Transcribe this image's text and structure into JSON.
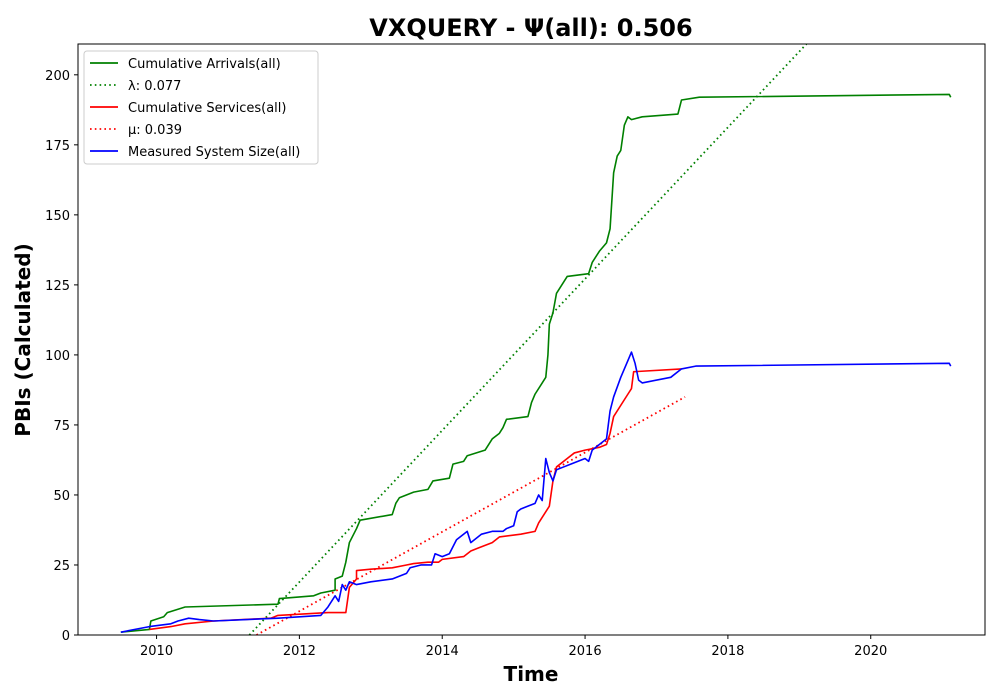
{
  "chart_data": {
    "type": "line",
    "title": "VXQUERY -  Ψ(all): 0.506",
    "xlabel": "Time",
    "ylabel": "PBIs (Calculated)",
    "xlim": [
      2008.9,
      2021.6
    ],
    "ylim": [
      0,
      211
    ],
    "xticks": [
      2010,
      2012,
      2014,
      2016,
      2018,
      2020
    ],
    "yticks": [
      0,
      25,
      50,
      75,
      100,
      125,
      150,
      175,
      200
    ],
    "grid": false,
    "legend_position": "top-left",
    "legend": [
      "Cumulative Arrivals(all)",
      "λ: 0.077",
      "Cumulative Services(all)",
      "μ: 0.039",
      "Measured System Size(all)"
    ],
    "colors": {
      "arrivals": "#008000",
      "services": "#ff0000",
      "system_size": "#0000ff"
    },
    "series": [
      {
        "name": "Cumulative Arrivals(all)",
        "style": "solid",
        "color": "#008000",
        "points": [
          [
            2009.5,
            1
          ],
          [
            2009.9,
            2
          ],
          [
            2009.92,
            5
          ],
          [
            2010.1,
            6.5
          ],
          [
            2010.15,
            8
          ],
          [
            2010.4,
            10
          ],
          [
            2011.7,
            11
          ],
          [
            2011.72,
            13
          ],
          [
            2012.2,
            14
          ],
          [
            2012.3,
            15
          ],
          [
            2012.5,
            16
          ],
          [
            2012.5,
            20
          ],
          [
            2012.6,
            21
          ],
          [
            2012.65,
            26
          ],
          [
            2012.7,
            33
          ],
          [
            2012.8,
            38
          ],
          [
            2012.85,
            41
          ],
          [
            2013.3,
            43
          ],
          [
            2013.35,
            47
          ],
          [
            2013.4,
            49
          ],
          [
            2013.6,
            51
          ],
          [
            2013.8,
            52
          ],
          [
            2013.87,
            55
          ],
          [
            2014.1,
            56
          ],
          [
            2014.15,
            61
          ],
          [
            2014.3,
            62
          ],
          [
            2014.35,
            64
          ],
          [
            2014.6,
            66
          ],
          [
            2014.7,
            70
          ],
          [
            2014.8,
            72
          ],
          [
            2014.85,
            74
          ],
          [
            2014.9,
            77
          ],
          [
            2015.2,
            78
          ],
          [
            2015.25,
            83
          ],
          [
            2015.3,
            86
          ],
          [
            2015.4,
            90
          ],
          [
            2015.45,
            92
          ],
          [
            2015.48,
            100
          ],
          [
            2015.5,
            111
          ],
          [
            2015.55,
            115
          ],
          [
            2015.6,
            122
          ],
          [
            2015.7,
            126
          ],
          [
            2015.75,
            128
          ],
          [
            2016.05,
            129
          ],
          [
            2016.1,
            133
          ],
          [
            2016.2,
            137
          ],
          [
            2016.3,
            140
          ],
          [
            2016.35,
            145
          ],
          [
            2016.4,
            165
          ],
          [
            2016.45,
            171
          ],
          [
            2016.5,
            173
          ],
          [
            2016.55,
            182
          ],
          [
            2016.6,
            185
          ],
          [
            2016.65,
            184
          ],
          [
            2016.8,
            185
          ],
          [
            2017.3,
            186
          ],
          [
            2017.35,
            191
          ],
          [
            2017.6,
            192
          ],
          [
            2021.1,
            193
          ],
          [
            2021.12,
            192
          ]
        ]
      },
      {
        "name": "λ: 0.077",
        "style": "dotted",
        "color": "#008000",
        "points": [
          [
            2011.3,
            0
          ],
          [
            2019.1,
            211
          ]
        ]
      },
      {
        "name": "Cumulative Services(all)",
        "style": "solid",
        "color": "#ff0000",
        "points": [
          [
            2009.9,
            2
          ],
          [
            2010.2,
            3
          ],
          [
            2010.4,
            4
          ],
          [
            2010.8,
            5
          ],
          [
            2011.6,
            6
          ],
          [
            2011.7,
            7
          ],
          [
            2012.4,
            8
          ],
          [
            2012.65,
            8
          ],
          [
            2012.7,
            17
          ],
          [
            2012.8,
            20
          ],
          [
            2012.8,
            23
          ],
          [
            2013.0,
            23.5
          ],
          [
            2013.3,
            24
          ],
          [
            2013.5,
            25
          ],
          [
            2013.6,
            25.5
          ],
          [
            2013.8,
            26
          ],
          [
            2013.95,
            26
          ],
          [
            2014.0,
            27
          ],
          [
            2014.3,
            28
          ],
          [
            2014.4,
            30
          ],
          [
            2014.5,
            31
          ],
          [
            2014.7,
            33
          ],
          [
            2014.8,
            35
          ],
          [
            2015.1,
            36
          ],
          [
            2015.3,
            37
          ],
          [
            2015.35,
            40
          ],
          [
            2015.5,
            46
          ],
          [
            2015.55,
            55
          ],
          [
            2015.6,
            60
          ],
          [
            2015.75,
            63
          ],
          [
            2015.85,
            65
          ],
          [
            2016.0,
            66
          ],
          [
            2016.2,
            67
          ],
          [
            2016.3,
            68
          ],
          [
            2016.35,
            72
          ],
          [
            2016.4,
            78
          ],
          [
            2016.6,
            86
          ],
          [
            2016.65,
            88
          ],
          [
            2016.68,
            94
          ],
          [
            2017.35,
            95
          ]
        ]
      },
      {
        "name": "μ: 0.039",
        "style": "dotted",
        "color": "#ff0000",
        "points": [
          [
            2011.4,
            0
          ],
          [
            2017.4,
            85
          ]
        ]
      },
      {
        "name": "Measured System Size(all)",
        "style": "solid",
        "color": "#0000ff",
        "points": [
          [
            2009.5,
            1
          ],
          [
            2009.9,
            3
          ],
          [
            2010.2,
            4
          ],
          [
            2010.3,
            5
          ],
          [
            2010.45,
            6
          ],
          [
            2010.6,
            5.5
          ],
          [
            2010.8,
            5
          ],
          [
            2011.7,
            6
          ],
          [
            2012.3,
            7
          ],
          [
            2012.4,
            10
          ],
          [
            2012.5,
            14
          ],
          [
            2012.55,
            12
          ],
          [
            2012.6,
            18
          ],
          [
            2012.65,
            16
          ],
          [
            2012.7,
            19
          ],
          [
            2012.8,
            18
          ],
          [
            2013.0,
            19
          ],
          [
            2013.3,
            20
          ],
          [
            2013.5,
            22
          ],
          [
            2013.55,
            24
          ],
          [
            2013.7,
            25
          ],
          [
            2013.85,
            25
          ],
          [
            2013.9,
            29
          ],
          [
            2014.0,
            28
          ],
          [
            2014.1,
            29
          ],
          [
            2014.2,
            34
          ],
          [
            2014.35,
            37
          ],
          [
            2014.4,
            33
          ],
          [
            2014.55,
            36
          ],
          [
            2014.7,
            37
          ],
          [
            2014.85,
            37
          ],
          [
            2014.9,
            38
          ],
          [
            2015.0,
            39
          ],
          [
            2015.05,
            44
          ],
          [
            2015.1,
            45
          ],
          [
            2015.2,
            46
          ],
          [
            2015.3,
            47
          ],
          [
            2015.35,
            50
          ],
          [
            2015.4,
            48
          ],
          [
            2015.45,
            63
          ],
          [
            2015.5,
            58
          ],
          [
            2015.55,
            55
          ],
          [
            2015.6,
            59
          ],
          [
            2015.7,
            60
          ],
          [
            2015.8,
            61
          ],
          [
            2016.0,
            63
          ],
          [
            2016.05,
            62
          ],
          [
            2016.1,
            66
          ],
          [
            2016.2,
            68
          ],
          [
            2016.3,
            70
          ],
          [
            2016.35,
            80
          ],
          [
            2016.4,
            85
          ],
          [
            2016.5,
            92
          ],
          [
            2016.55,
            95
          ],
          [
            2016.6,
            98
          ],
          [
            2016.65,
            101
          ],
          [
            2016.7,
            97
          ],
          [
            2016.75,
            91
          ],
          [
            2016.8,
            90
          ],
          [
            2017.2,
            92
          ],
          [
            2017.35,
            95
          ],
          [
            2017.55,
            96
          ],
          [
            2021.1,
            97
          ],
          [
            2021.12,
            96
          ]
        ]
      }
    ]
  }
}
